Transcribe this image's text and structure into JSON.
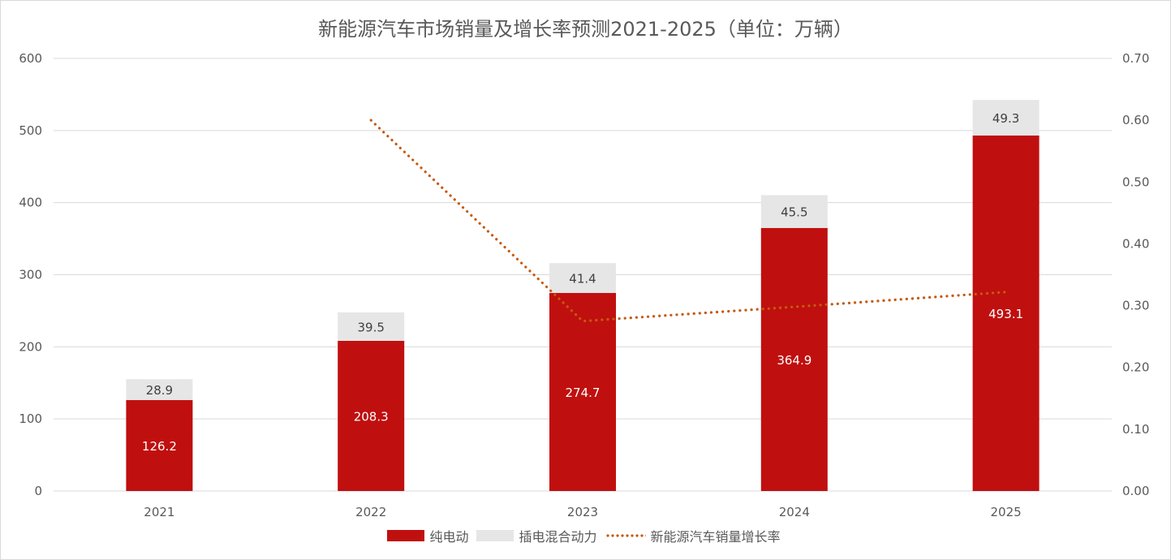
{
  "chart_data": {
    "type": "bar",
    "title": "新能源汽车市场销量及增长率预测2021-2025（单位：万辆）",
    "categories": [
      "2021",
      "2022",
      "2023",
      "2024",
      "2025"
    ],
    "series": [
      {
        "name": "纯电动",
        "kind": "stacked-bar",
        "axis": "left",
        "color": "#c00f0f",
        "values": [
          126.2,
          208.3,
          274.7,
          364.9,
          493.1
        ],
        "labels": [
          "126.2",
          "208.3",
          "274.7",
          "364.9",
          "493.1"
        ]
      },
      {
        "name": "插电混合动力",
        "kind": "stacked-bar",
        "axis": "left",
        "color": "#e6e6e6",
        "values": [
          28.9,
          39.5,
          41.4,
          45.5,
          49.3
        ],
        "labels": [
          "28.9",
          "39.5",
          "41.4",
          "45.5",
          "49.3"
        ]
      },
      {
        "name": "新能源汽车销量增长率",
        "kind": "line-dotted",
        "axis": "right",
        "color": "#c55a11",
        "values": [
          null,
          0.6,
          0.275,
          0.298,
          0.322
        ]
      }
    ],
    "y_left": {
      "min": 0,
      "max": 600,
      "ticks": [
        "0",
        "100",
        "200",
        "300",
        "400",
        "500",
        "600"
      ]
    },
    "y_right": {
      "min": 0,
      "max": 0.7,
      "ticks": [
        "0.00",
        "0.10",
        "0.20",
        "0.30",
        "0.40",
        "0.50",
        "0.60",
        "0.70"
      ]
    },
    "grid": true,
    "legend_position": "bottom"
  }
}
